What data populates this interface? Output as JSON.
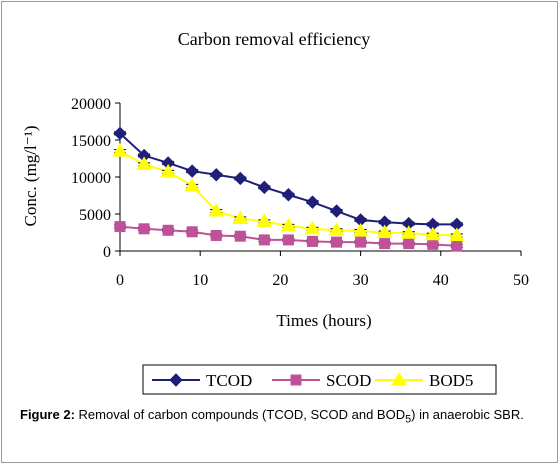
{
  "chart_data": {
    "type": "line",
    "title": "Carbon removal efficiency",
    "xlabel": "Times (hours)",
    "ylabel": "Conc. (mg/l⁻¹)",
    "xlim": [
      0,
      50
    ],
    "ylim": [
      0,
      20000
    ],
    "xticks": [
      0,
      10,
      20,
      30,
      40,
      50
    ],
    "yticks": [
      0,
      5000,
      10000,
      15000,
      20000
    ],
    "x": [
      0,
      3,
      6,
      9,
      12,
      15,
      18,
      21,
      24,
      27,
      30,
      33,
      36,
      39,
      42
    ],
    "series": [
      {
        "name": "TCOD",
        "color": "#1f1f7a",
        "marker": "diamond",
        "values": [
          15900,
          12900,
          11900,
          10800,
          10300,
          9800,
          8600,
          7600,
          6600,
          5400,
          4200,
          3900,
          3700,
          3600,
          3600
        ]
      },
      {
        "name": "SCOD",
        "color": "#c0509a",
        "marker": "square",
        "values": [
          3300,
          3000,
          2800,
          2600,
          2100,
          2000,
          1500,
          1500,
          1300,
          1200,
          1200,
          1000,
          1000,
          900,
          700
        ]
      },
      {
        "name": "BOD5",
        "color": "#ffff00",
        "marker": "triangle",
        "values": [
          13500,
          11700,
          10700,
          8800,
          5400,
          4400,
          4000,
          3400,
          3000,
          2800,
          2700,
          2500,
          2400,
          2200,
          2100
        ]
      }
    ],
    "grid": false,
    "legend": "bottom",
    "error_bars": true
  },
  "caption": {
    "label": "Figure 2:",
    "text": " Removal of carbon compounds (TCOD, SCOD and BOD",
    "sub": "5",
    "text_end": ") in anaerobic SBR."
  }
}
